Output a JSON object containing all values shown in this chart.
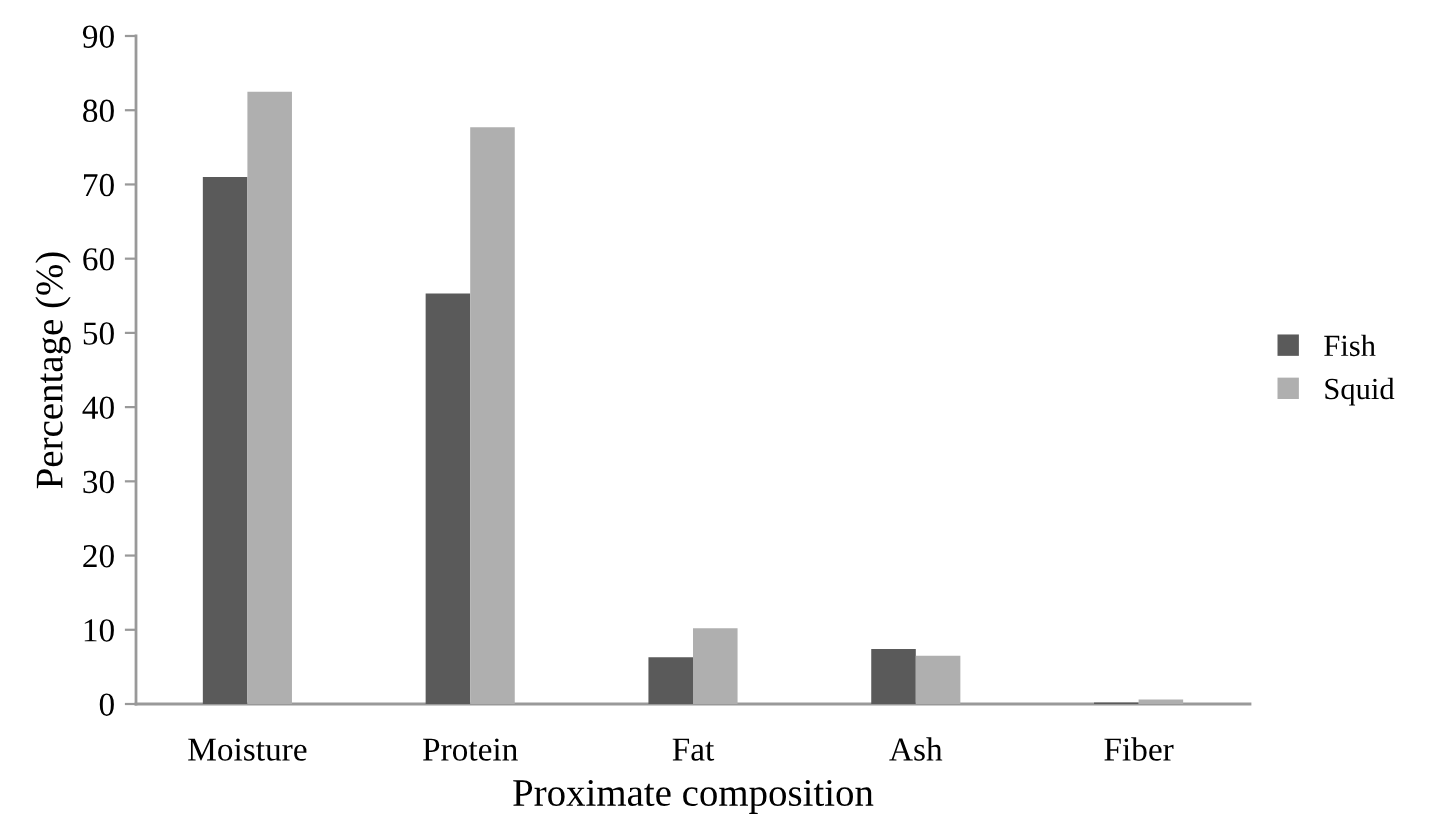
{
  "chart_data": {
    "type": "bar",
    "xlabel": "Proximate composition",
    "ylabel": "Percentage (%)",
    "categories": [
      "Moisture",
      "Protein",
      "Fat",
      "Ash",
      "Fiber"
    ],
    "series": [
      {
        "name": "Fish",
        "color": "#5a5a5a",
        "values": [
          71,
          55.3,
          6.3,
          7.4,
          0.2
        ]
      },
      {
        "name": "Squid",
        "color": "#afafaf",
        "values": [
          82.5,
          77.7,
          10.2,
          6.5,
          0.6
        ]
      }
    ],
    "ylim": [
      0,
      90
    ],
    "yticks": [
      0,
      10,
      20,
      30,
      40,
      50,
      60,
      70,
      80,
      90
    ],
    "grid": false,
    "legend": "right"
  }
}
